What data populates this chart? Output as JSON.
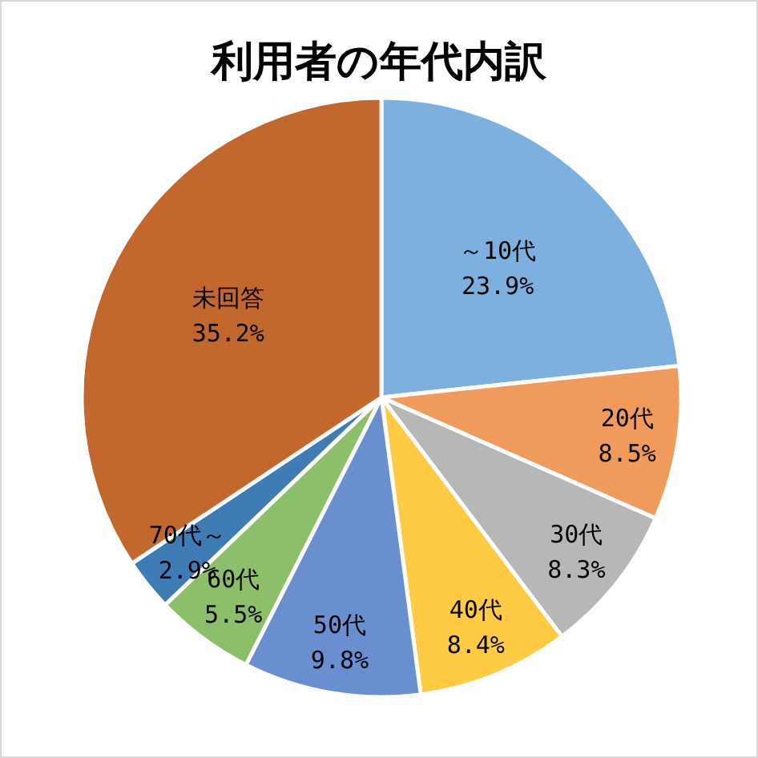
{
  "chart_data": {
    "type": "pie",
    "title": "利用者の年代内訳",
    "categories": [
      "～10代",
      "20代",
      "30代",
      "40代",
      "50代",
      "60代",
      "70代～",
      "未回答"
    ],
    "values": [
      23.9,
      8.5,
      8.3,
      8.4,
      9.8,
      5.5,
      2.9,
      35.2
    ],
    "value_labels": [
      "23.9%",
      "8.5%",
      "8.3%",
      "8.4%",
      "9.8%",
      "5.5%",
      "2.9%",
      "35.2%"
    ],
    "colors": [
      "#7db0df",
      "#f09a5c",
      "#b7b7b7",
      "#ffcb45",
      "#6a8fd0",
      "#8dbf6a",
      "#3f7bb5",
      "#c2672e"
    ]
  }
}
